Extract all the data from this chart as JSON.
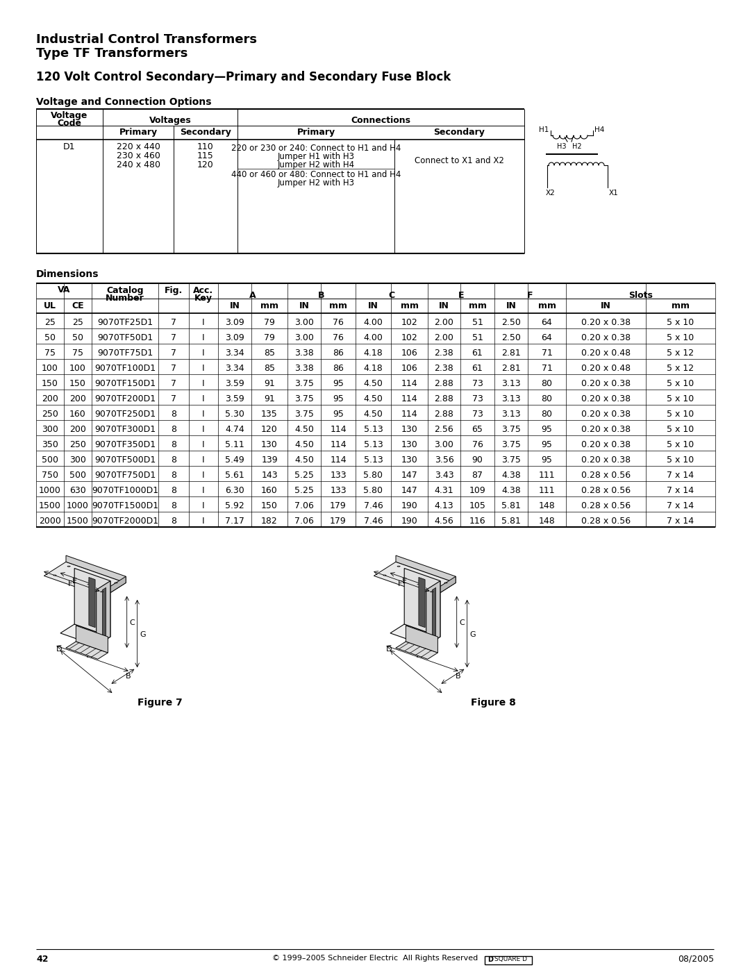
{
  "title_line1": "Industrial Control Transformers",
  "title_line2": "Type TF Transformers",
  "subtitle": "120 Volt Control Secondary—Primary and Secondary Fuse Block",
  "section1_title": "Voltage and Connection Options",
  "section2_title": "Dimensions",
  "voltage_table_rows": [
    {
      "code": "D1",
      "primary": [
        "220 x 440",
        "230 x 460",
        "240 x 480"
      ],
      "secondary": [
        "110",
        "115",
        "120"
      ],
      "primary_conn1": "220 or 230 or 240: Connect to H1 and H4",
      "primary_conn2": "Jumper H1 with H3",
      "primary_conn3": "Jumper H2 with H4",
      "primary_conn4": "440 or 460 or 480: Connect to H1 and H4",
      "primary_conn5": "Jumper H2 with H3",
      "secondary_conn": "Connect to X1 and X2"
    }
  ],
  "dimensions_rows": [
    [
      25,
      25,
      "9070TF25D1",
      7,
      "I",
      "3.09",
      79,
      "3.00",
      76,
      "4.00",
      102,
      "2.00",
      51,
      "2.50",
      64,
      "0.20 x 0.38",
      "5 x 10"
    ],
    [
      50,
      50,
      "9070TF50D1",
      7,
      "I",
      "3.09",
      79,
      "3.00",
      76,
      "4.00",
      102,
      "2.00",
      51,
      "2.50",
      64,
      "0.20 x 0.38",
      "5 x 10"
    ],
    [
      75,
      75,
      "9070TF75D1",
      7,
      "I",
      "3.34",
      85,
      "3.38",
      86,
      "4.18",
      106,
      "2.38",
      61,
      "2.81",
      71,
      "0.20 x 0.48",
      "5 x 12"
    ],
    [
      100,
      100,
      "9070TF100D1",
      7,
      "I",
      "3.34",
      85,
      "3.38",
      86,
      "4.18",
      106,
      "2.38",
      61,
      "2.81",
      71,
      "0.20 x 0.48",
      "5 x 12"
    ],
    [
      150,
      150,
      "9070TF150D1",
      7,
      "I",
      "3.59",
      91,
      "3.75",
      95,
      "4.50",
      114,
      "2.88",
      73,
      "3.13",
      80,
      "0.20 x 0.38",
      "5 x 10"
    ],
    [
      200,
      200,
      "9070TF200D1",
      7,
      "I",
      "3.59",
      91,
      "3.75",
      95,
      "4.50",
      114,
      "2.88",
      73,
      "3.13",
      80,
      "0.20 x 0.38",
      "5 x 10"
    ],
    [
      250,
      160,
      "9070TF250D1",
      8,
      "I",
      "5.30",
      135,
      "3.75",
      95,
      "4.50",
      114,
      "2.88",
      73,
      "3.13",
      80,
      "0.20 x 0.38",
      "5 x 10"
    ],
    [
      300,
      200,
      "9070TF300D1",
      8,
      "I",
      "4.74",
      120,
      "4.50",
      114,
      "5.13",
      130,
      "2.56",
      65,
      "3.75",
      95,
      "0.20 x 0.38",
      "5 x 10"
    ],
    [
      350,
      250,
      "9070TF350D1",
      8,
      "I",
      "5.11",
      130,
      "4.50",
      114,
      "5.13",
      130,
      "3.00",
      76,
      "3.75",
      95,
      "0.20 x 0.38",
      "5 x 10"
    ],
    [
      500,
      300,
      "9070TF500D1",
      8,
      "I",
      "5.49",
      139,
      "4.50",
      114,
      "5.13",
      130,
      "3.56",
      90,
      "3.75",
      95,
      "0.20 x 0.38",
      "5 x 10"
    ],
    [
      750,
      500,
      "9070TF750D1",
      8,
      "I",
      "5.61",
      143,
      "5.25",
      133,
      "5.80",
      147,
      "3.43",
      87,
      "4.38",
      111,
      "0.28 x 0.56",
      "7 x 14"
    ],
    [
      1000,
      630,
      "9070TF1000D1",
      8,
      "I",
      "6.30",
      160,
      "5.25",
      133,
      "5.80",
      147,
      "4.31",
      109,
      "4.38",
      111,
      "0.28 x 0.56",
      "7 x 14"
    ],
    [
      1500,
      1000,
      "9070TF1500D1",
      8,
      "I",
      "5.92",
      150,
      "7.06",
      179,
      "7.46",
      190,
      "4.13",
      105,
      "5.81",
      148,
      "0.28 x 0.56",
      "7 x 14"
    ],
    [
      2000,
      1500,
      "9070TF2000D1",
      8,
      "I",
      "7.17",
      182,
      "7.06",
      179,
      "7.46",
      190,
      "4.56",
      116,
      "5.81",
      148,
      "0.28 x 0.56",
      "7 x 14"
    ]
  ],
  "footer_left": "© 1999–2005 Schneider Electric  All Rights Reserved",
  "footer_page": "42",
  "footer_right": "08/2005",
  "figure7_label": "Figure 7",
  "figure8_label": "Figure 8",
  "bg_color": "#ffffff"
}
